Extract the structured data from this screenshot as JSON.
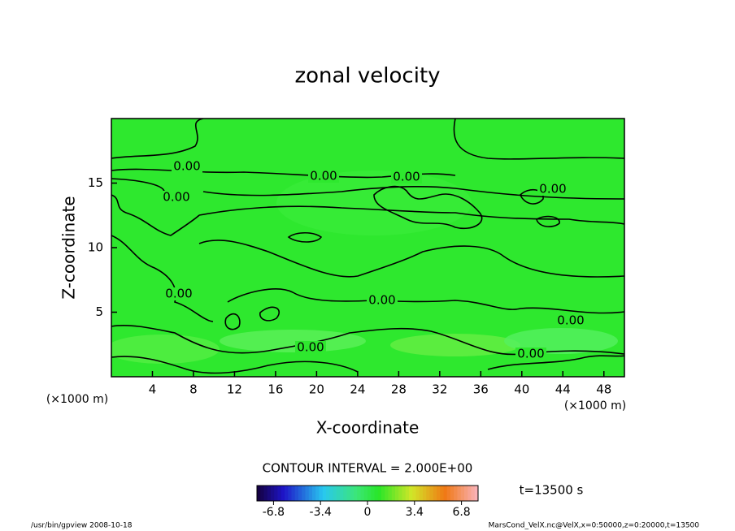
{
  "chart_data": {
    "type": "contour",
    "title": "zonal velocity",
    "x_label": "X-coordinate",
    "y_label": "Z-coordinate",
    "x_unit": "(×1000 m)",
    "y_unit": "(×1000 m)",
    "xlim": [
      0,
      50
    ],
    "xticks": [
      4,
      8,
      12,
      16,
      20,
      24,
      28,
      32,
      36,
      40,
      44,
      48
    ],
    "ylim": [
      0,
      20
    ],
    "yticks": [
      5,
      10,
      15
    ],
    "contour_labels": [
      "0.00",
      "0.00",
      "0.00",
      "0.00",
      "0.00",
      "0.00",
      "0.00",
      "0.00",
      "0.00",
      "0.00"
    ],
    "contour_interval": "CONTOUR INTERVAL = 2.000E+00",
    "time_label": "t=13500 s",
    "colorbar": {
      "lim": [
        -8,
        8
      ],
      "ticks": [
        -6.8,
        -3.4,
        0,
        3.4,
        6.8
      ]
    },
    "footer_left": "/usr/bin/gpview   2008-10-18",
    "footer_right": "MarsCond_VelX.nc@VelX,x=0:50000,z=0:20000,t=13500"
  }
}
